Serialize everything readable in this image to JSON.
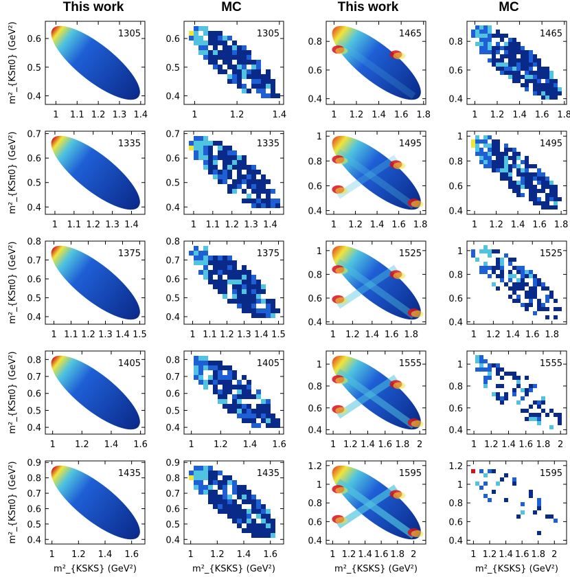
{
  "column_titles": [
    "This work",
    "MC",
    "This work",
    "MC"
  ],
  "x_axis_label": "m²_{KSKS} (GeV²)",
  "y_axis_label": "m²_{KSπ0} (GeV²)",
  "colors": {
    "dark_blue": "#0a2a8a",
    "blue": "#1f5fd6",
    "cyan": "#4fc3e0",
    "yellow": "#f1e43a",
    "red": "#d3121a"
  },
  "chart_data": [
    {
      "type": "heatmap",
      "column": "This work",
      "label": "1305",
      "xticks": [
        "1",
        "1.1",
        "1.2",
        "1.3",
        "1.4"
      ],
      "yticks": [
        "0.4",
        "0.5",
        "0.6"
      ],
      "xlim": [
        0.95,
        1.42
      ],
      "ylim": [
        0.37,
        0.66
      ]
    },
    {
      "type": "heatmap",
      "column": "MC",
      "label": "1305",
      "xticks": [
        "1",
        "1.2",
        "1.4"
      ],
      "yticks": [
        "0.4",
        "0.5",
        "0.6"
      ],
      "xlim": [
        0.95,
        1.42
      ],
      "ylim": [
        0.37,
        0.66
      ]
    },
    {
      "type": "heatmap",
      "column": "This work",
      "label": "1465",
      "xticks": [
        "1",
        "1.2",
        "1.4",
        "1.6",
        "1.8"
      ],
      "yticks": [
        "0.4",
        "0.6",
        "0.8"
      ],
      "xlim": [
        0.93,
        1.82
      ],
      "ylim": [
        0.36,
        0.94
      ]
    },
    {
      "type": "heatmap",
      "column": "MC",
      "label": "1465",
      "xticks": [
        "1",
        "1.2",
        "1.4",
        "1.6",
        "1.8"
      ],
      "yticks": [
        "0.4",
        "0.6",
        "0.8"
      ],
      "xlim": [
        0.93,
        1.82
      ],
      "ylim": [
        0.36,
        0.94
      ]
    },
    {
      "type": "heatmap",
      "column": "This work",
      "label": "1335",
      "xticks": [
        "1",
        "1.1",
        "1.2",
        "1.3",
        "1.4"
      ],
      "yticks": [
        "0.4",
        "0.5",
        "0.6",
        "0.7"
      ],
      "xlim": [
        0.95,
        1.47
      ],
      "ylim": [
        0.37,
        0.71
      ]
    },
    {
      "type": "heatmap",
      "column": "MC",
      "label": "1335",
      "xticks": [
        "1",
        "1.1",
        "1.2",
        "1.3",
        "1.4"
      ],
      "yticks": [
        "0.4",
        "0.5",
        "0.6",
        "0.7"
      ],
      "xlim": [
        0.95,
        1.47
      ],
      "ylim": [
        0.37,
        0.71
      ]
    },
    {
      "type": "heatmap",
      "column": "This work",
      "label": "1495",
      "xticks": [
        "1",
        "1.2",
        "1.4",
        "1.6",
        "1.8"
      ],
      "yticks": [
        "0.4",
        "0.6",
        "0.8",
        "1"
      ],
      "xlim": [
        0.93,
        1.85
      ],
      "ylim": [
        0.37,
        1.04
      ]
    },
    {
      "type": "heatmap",
      "column": "MC",
      "label": "1495",
      "xticks": [
        "1",
        "1.2",
        "1.4",
        "1.6",
        "1.8"
      ],
      "yticks": [
        "0.4",
        "0.6",
        "0.8",
        "1"
      ],
      "xlim": [
        0.93,
        1.85
      ],
      "ylim": [
        0.37,
        1.04
      ]
    },
    {
      "type": "heatmap",
      "column": "This work",
      "label": "1375",
      "xticks": [
        "1",
        "1.1",
        "1.2",
        "1.3",
        "1.4",
        "1.5"
      ],
      "yticks": [
        "0.4",
        "0.5",
        "0.6",
        "0.7",
        "0.8"
      ],
      "xlim": [
        0.95,
        1.53
      ],
      "ylim": [
        0.36,
        0.8
      ]
    },
    {
      "type": "heatmap",
      "column": "MC",
      "label": "1375",
      "xticks": [
        "1",
        "1.1",
        "1.2",
        "1.3",
        "1.4",
        "1.5"
      ],
      "yticks": [
        "0.4",
        "0.5",
        "0.6",
        "0.7",
        "0.8"
      ],
      "xlim": [
        0.95,
        1.53
      ],
      "ylim": [
        0.36,
        0.8
      ]
    },
    {
      "type": "heatmap",
      "column": "This work",
      "label": "1525",
      "xticks": [
        "1",
        "1.2",
        "1.4",
        "1.6",
        "1.8"
      ],
      "yticks": [
        "0.4",
        "0.6",
        "0.8",
        "1"
      ],
      "xlim": [
        0.93,
        1.95
      ],
      "ylim": [
        0.38,
        1.08
      ]
    },
    {
      "type": "heatmap",
      "column": "MC",
      "label": "1525",
      "xticks": [
        "1",
        "1.2",
        "1.4",
        "1.6",
        "1.8"
      ],
      "yticks": [
        "0.4",
        "0.6",
        "0.8",
        "1"
      ],
      "xlim": [
        0.93,
        1.95
      ],
      "ylim": [
        0.38,
        1.08
      ]
    },
    {
      "type": "heatmap",
      "column": "This work",
      "label": "1405",
      "xticks": [
        "1",
        "1.2",
        "1.4",
        "1.6"
      ],
      "yticks": [
        "0.4",
        "0.5",
        "0.6",
        "0.7",
        "0.8"
      ],
      "xlim": [
        0.95,
        1.63
      ],
      "ylim": [
        0.36,
        0.85
      ]
    },
    {
      "type": "heatmap",
      "column": "MC",
      "label": "1405",
      "xticks": [
        "1",
        "1.2",
        "1.4",
        "1.6"
      ],
      "yticks": [
        "0.4",
        "0.5",
        "0.6",
        "0.7",
        "0.8"
      ],
      "xlim": [
        0.95,
        1.63
      ],
      "ylim": [
        0.36,
        0.85
      ]
    },
    {
      "type": "heatmap",
      "column": "This work",
      "label": "1555",
      "xticks": [
        "1",
        "1.2",
        "1.4",
        "1.6",
        "1.8",
        "2"
      ],
      "yticks": [
        "0.4",
        "0.6",
        "0.8",
        "1"
      ],
      "xlim": [
        0.92,
        2.07
      ],
      "ylim": [
        0.36,
        1.12
      ]
    },
    {
      "type": "heatmap",
      "column": "MC",
      "label": "1555",
      "xticks": [
        "1",
        "1.2",
        "1.4",
        "1.6",
        "1.8",
        "2"
      ],
      "yticks": [
        "0.4",
        "0.6",
        "0.8",
        "1"
      ],
      "xlim": [
        0.92,
        2.07
      ],
      "ylim": [
        0.36,
        1.12
      ]
    },
    {
      "type": "heatmap",
      "column": "This work",
      "label": "1435",
      "xticks": [
        "1",
        "1.2",
        "1.4",
        "1.6"
      ],
      "yticks": [
        "0.4",
        "0.5",
        "0.6",
        "0.7",
        "0.8",
        "0.9"
      ],
      "xlim": [
        0.95,
        1.7
      ],
      "ylim": [
        0.37,
        0.91
      ]
    },
    {
      "type": "heatmap",
      "column": "MC",
      "label": "1435",
      "xticks": [
        "1",
        "1.2",
        "1.4",
        "1.6"
      ],
      "yticks": [
        "0.4",
        "0.5",
        "0.6",
        "0.7",
        "0.8",
        "0.9"
      ],
      "xlim": [
        0.95,
        1.7
      ],
      "ylim": [
        0.37,
        0.91
      ]
    },
    {
      "type": "heatmap",
      "column": "This work",
      "label": "1595",
      "xticks": [
        "1",
        "1.2",
        "1.4",
        "1.6",
        "1.8",
        "2"
      ],
      "yticks": [
        "0.4",
        "0.6",
        "0.8",
        "1",
        "1.2"
      ],
      "xlim": [
        0.92,
        2.15
      ],
      "ylim": [
        0.36,
        1.25
      ]
    },
    {
      "type": "heatmap",
      "column": "MC",
      "label": "1595",
      "xticks": [
        "1",
        "1.2",
        "1.4",
        "1.6",
        "1.8",
        "2"
      ],
      "yticks": [
        "0.4",
        "0.6",
        "0.8",
        "1",
        "1.2"
      ],
      "xlim": [
        0.92,
        2.15
      ],
      "ylim": [
        0.36,
        1.25
      ]
    }
  ]
}
